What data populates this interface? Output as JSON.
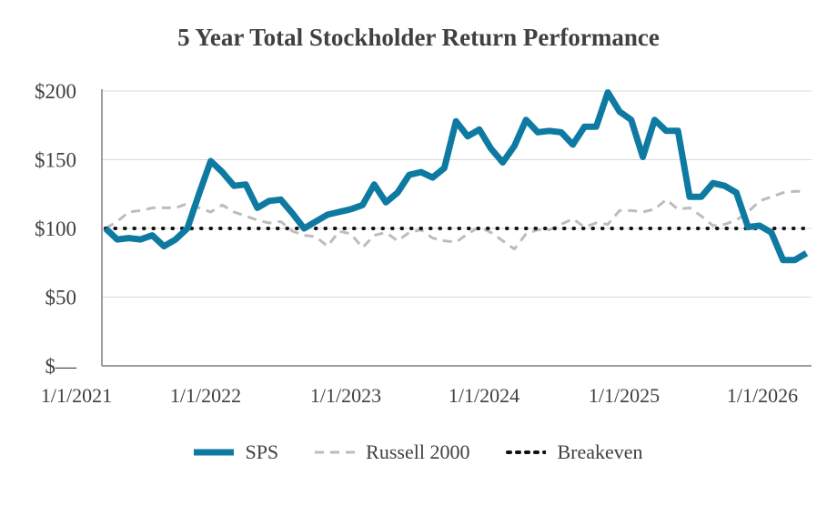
{
  "chart_data": {
    "type": "line",
    "title": "5 Year Total Stockholder Return Performance",
    "xlabel": "",
    "ylabel": "",
    "x_ticks": [
      "1/1/2021",
      "1/1/2022",
      "1/1/2023",
      "1/1/2024",
      "1/1/2025",
      "1/1/2026"
    ],
    "y_ticks": [
      "$—",
      "$50",
      "$100",
      "$150",
      "$200"
    ],
    "ylim": [
      0,
      200
    ],
    "grid": true,
    "legend_position": "bottom",
    "series": [
      {
        "name": "SPS",
        "color": "#0e7aa1",
        "style": "solid",
        "values": [
          100,
          92,
          93,
          92,
          95,
          87,
          92,
          100,
          125,
          149,
          141,
          131,
          132,
          115,
          120,
          121,
          111,
          100,
          105,
          110,
          112,
          114,
          117,
          132,
          119,
          126,
          139,
          141,
          137,
          144,
          178,
          167,
          172,
          158,
          148,
          160,
          179,
          170,
          171,
          170,
          161,
          174,
          174,
          199,
          185,
          179,
          152,
          179,
          171,
          171,
          123,
          123,
          133,
          131,
          126,
          101,
          102,
          97,
          77,
          77,
          82
        ]
      },
      {
        "name": "Russell 2000",
        "color": "#bcbcbc",
        "style": "dashed",
        "values": [
          100,
          105,
          112,
          113,
          115,
          115,
          115,
          118,
          115,
          112,
          117,
          112,
          109,
          106,
          104,
          105,
          98,
          95,
          94,
          87,
          98,
          96,
          86,
          95,
          97,
          91,
          97,
          99,
          93,
          91,
          90,
          96,
          101,
          97,
          91,
          85,
          96,
          99,
          99,
          103,
          107,
          101,
          104,
          103,
          113,
          113,
          112,
          114,
          121,
          114,
          115,
          109,
          102,
          103,
          106,
          112,
          120,
          123,
          126,
          127,
          127
        ]
      },
      {
        "name": "Breakeven",
        "color": "#111111",
        "style": "dotted",
        "values": [
          100,
          100
        ]
      }
    ]
  },
  "legend": {
    "sps": "SPS",
    "russell": "Russell 2000",
    "breakeven": "Breakeven"
  }
}
